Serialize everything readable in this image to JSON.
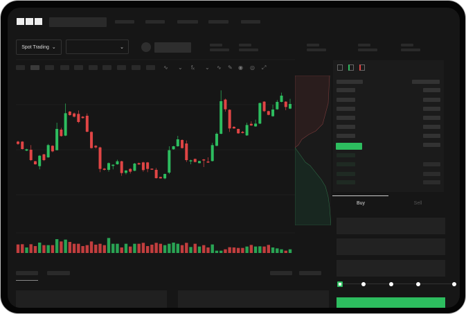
{
  "header": {
    "logo": "OKX"
  },
  "controls": {
    "market_label": "Spot Trading",
    "chevron": "chevron-down-icon"
  },
  "trade": {
    "buy_tab": "Buy",
    "sell_tab": "Sell"
  },
  "colors": {
    "up": "#2dbd5f",
    "down": "#e04545",
    "bg": "#161616",
    "panel": "#1b1b1b"
  },
  "order_entry": {
    "leverage_level_index": 0,
    "leverage_steps": 5
  },
  "chart_data": {
    "type": "candlestick",
    "grid": true,
    "candles_ohlc": [
      [
        250,
        254,
        236,
        240
      ],
      [
        250,
        252,
        216,
        218
      ],
      [
        211,
        219,
        209,
        217
      ],
      [
        215,
        235,
        166,
        170
      ],
      [
        165,
        167,
        150,
        152
      ],
      [
        144,
        192,
        130,
        189
      ],
      [
        195,
        197,
        166,
        170
      ],
      [
        182,
        240,
        180,
        235
      ],
      [
        232,
        234,
        204,
        208
      ],
      [
        213,
        332,
        212,
        305
      ],
      [
        302,
        310,
        272,
        274
      ],
      [
        276,
        415,
        274,
        373
      ],
      [
        380,
        383,
        362,
        365
      ],
      [
        372,
        376,
        355,
        358
      ],
      [
        370,
        385,
        330,
        335
      ],
      [
        358,
        360,
        350,
        352
      ],
      [
        362,
        372,
        290,
        293
      ],
      [
        292,
        295,
        220,
        222
      ],
      [
        232,
        235,
        220,
        225
      ],
      [
        225,
        228,
        118,
        132
      ],
      [
        133,
        136,
        125,
        128
      ],
      [
        128,
        160,
        120,
        157
      ],
      [
        145,
        152,
        130,
        150
      ],
      [
        152,
        172,
        150,
        165
      ],
      [
        165,
        167,
        102,
        114
      ],
      [
        115,
        127,
        108,
        125
      ],
      [
        132,
        135,
        112,
        120
      ],
      [
        124,
        158,
        122,
        155
      ],
      [
        157,
        159,
        150,
        151
      ],
      [
        160,
        163,
        120,
        127
      ],
      [
        160,
        162,
        118,
        132
      ],
      [
        133,
        134,
        128,
        129
      ],
      [
        128,
        136,
        90,
        92
      ],
      [
        97,
        98,
        90,
        91
      ],
      [
        91,
        112,
        87,
        110
      ],
      [
        116,
        230,
        110,
        213
      ],
      [
        217,
        232,
        215,
        230
      ],
      [
        230,
        275,
        228,
        260
      ],
      [
        257,
        260,
        220,
        222
      ],
      [
        242,
        255,
        162,
        170
      ],
      [
        165,
        172,
        152,
        169
      ],
      [
        175,
        177,
        160,
        162
      ],
      [
        157,
        167,
        156,
        166
      ],
      [
        173,
        175,
        140,
        170
      ],
      [
        164,
        182,
        158,
        160
      ],
      [
        166,
        245,
        164,
        235
      ],
      [
        232,
        290,
        230,
        284
      ],
      [
        284,
        472,
        282,
        425
      ],
      [
        432,
        436,
        380,
        390
      ],
      [
        388,
        390,
        292,
        307
      ],
      [
        314,
        317,
        306,
        307
      ],
      [
        305,
        306,
        284,
        286
      ],
      [
        292,
        296,
        286,
        287
      ],
      [
        277,
        332,
        275,
        322
      ],
      [
        327,
        338,
        318,
        320
      ],
      [
        316,
        345,
        314,
        328
      ],
      [
        328,
        419,
        326,
        417
      ],
      [
        423,
        425,
        378,
        382
      ],
      [
        382,
        384,
        364,
        366
      ],
      [
        360,
        410,
        358,
        389
      ],
      [
        390,
        430,
        388,
        422
      ],
      [
        422,
        462,
        420,
        449
      ],
      [
        423,
        425,
        386,
        400
      ],
      [
        393,
        435,
        391,
        413
      ]
    ],
    "volumes": [
      37,
      38,
      24,
      38,
      30,
      45,
      34,
      34,
      34,
      60,
      50,
      58,
      48,
      40,
      40,
      30,
      34,
      50,
      36,
      40,
      34,
      65,
      40,
      40,
      24,
      40,
      28,
      40,
      40,
      44,
      30,
      36,
      44,
      40,
      34,
      40,
      45,
      40,
      34,
      44,
      26,
      40,
      28,
      34,
      24,
      37,
      10,
      10,
      16,
      25,
      24,
      22,
      22,
      28,
      35,
      28,
      29,
      28,
      35,
      24,
      20,
      16,
      10,
      16
    ]
  }
}
